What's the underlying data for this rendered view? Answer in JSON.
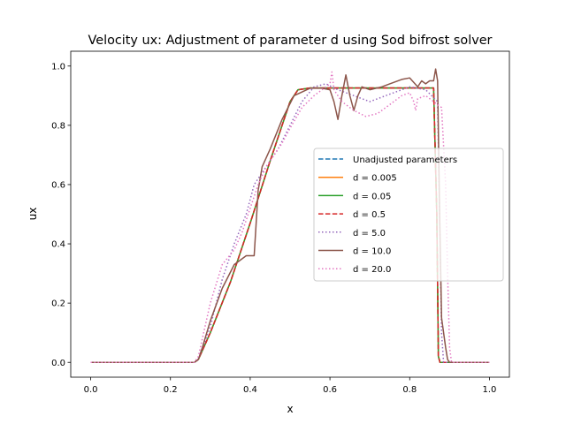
{
  "chart_data": {
    "type": "line",
    "title": "Velocity ux: Adjustment of parameter d using Sod bifrost solver",
    "xlabel": "x",
    "ylabel": "ux",
    "xlim": [
      -0.05,
      1.05
    ],
    "ylim": [
      -0.05,
      1.05
    ],
    "xticks": [
      0.0,
      0.2,
      0.4,
      0.6,
      0.8,
      1.0
    ],
    "xtick_labels": [
      "0.0",
      "0.2",
      "0.4",
      "0.6",
      "0.8",
      "1.0"
    ],
    "yticks": [
      0.0,
      0.2,
      0.4,
      0.6,
      0.8,
      1.0
    ],
    "ytick_labels": [
      "0.0",
      "0.2",
      "0.4",
      "0.6",
      "0.8",
      "1.0"
    ],
    "grid": false,
    "legend_position": "center-right",
    "series": [
      {
        "name": "Unadjusted parameters",
        "color": "#1f77b4",
        "dash": "dashed",
        "x": [
          0,
          0.26,
          0.27,
          0.3,
          0.35,
          0.4,
          0.45,
          0.5,
          0.52,
          0.55,
          0.7,
          0.86,
          0.868,
          0.872,
          0.876,
          1.0
        ],
        "y": [
          0,
          0,
          0.01,
          0.1,
          0.27,
          0.47,
          0.68,
          0.88,
          0.92,
          0.926,
          0.926,
          0.926,
          0.5,
          0.02,
          0,
          0
        ]
      },
      {
        "name": "d = 0.005",
        "color": "#ff7f0e",
        "dash": "solid",
        "x": [
          0,
          0.26,
          0.27,
          0.3,
          0.35,
          0.4,
          0.45,
          0.5,
          0.52,
          0.55,
          0.7,
          0.86,
          0.868,
          0.872,
          0.876,
          1.0
        ],
        "y": [
          0,
          0,
          0.01,
          0.1,
          0.27,
          0.47,
          0.68,
          0.88,
          0.92,
          0.926,
          0.926,
          0.926,
          0.5,
          0.02,
          0,
          0
        ]
      },
      {
        "name": "d = 0.05",
        "color": "#2ca02c",
        "dash": "solid",
        "x": [
          0,
          0.26,
          0.27,
          0.3,
          0.35,
          0.4,
          0.45,
          0.5,
          0.52,
          0.55,
          0.7,
          0.86,
          0.868,
          0.872,
          0.876,
          1.0
        ],
        "y": [
          0,
          0,
          0.01,
          0.1,
          0.27,
          0.47,
          0.68,
          0.88,
          0.92,
          0.926,
          0.926,
          0.926,
          0.5,
          0.02,
          0,
          0
        ]
      },
      {
        "name": "d = 0.5",
        "color": "#d62728",
        "dash": "dashed",
        "x": [
          0,
          0.26,
          0.27,
          0.3,
          0.35,
          0.4,
          0.45,
          0.5,
          0.52,
          0.55,
          0.7,
          0.86,
          0.868,
          0.872,
          0.876,
          1.0
        ],
        "y": [
          0,
          0,
          0.01,
          0.1,
          0.27,
          0.47,
          0.68,
          0.88,
          0.92,
          0.926,
          0.926,
          0.926,
          0.5,
          0.02,
          0,
          0
        ]
      },
      {
        "name": "d = 5.0",
        "color": "#9467bd",
        "dash": "dotted",
        "x": [
          0,
          0.26,
          0.27,
          0.3,
          0.33,
          0.36,
          0.39,
          0.41,
          0.43,
          0.45,
          0.47,
          0.5,
          0.53,
          0.56,
          0.59,
          0.62,
          0.66,
          0.7,
          0.74,
          0.78,
          0.8,
          0.84,
          0.87,
          0.875,
          0.88,
          0.885,
          1.0
        ],
        "y": [
          0,
          0,
          0.01,
          0.12,
          0.28,
          0.4,
          0.5,
          0.6,
          0.64,
          0.68,
          0.72,
          0.8,
          0.88,
          0.93,
          0.94,
          0.92,
          0.9,
          0.88,
          0.9,
          0.92,
          0.93,
          0.92,
          0.88,
          0.5,
          0.1,
          0,
          0
        ]
      },
      {
        "name": "d = 10.0",
        "color": "#8c564b",
        "dash": "solid",
        "x": [
          0,
          0.26,
          0.27,
          0.28,
          0.3,
          0.33,
          0.36,
          0.39,
          0.41,
          0.42,
          0.43,
          0.45,
          0.48,
          0.51,
          0.55,
          0.58,
          0.6,
          0.61,
          0.62,
          0.63,
          0.64,
          0.65,
          0.66,
          0.67,
          0.68,
          0.7,
          0.73,
          0.75,
          0.78,
          0.8,
          0.82,
          0.83,
          0.84,
          0.85,
          0.86,
          0.865,
          0.87,
          0.875,
          0.88,
          0.89,
          0.895,
          0.9,
          1.0
        ],
        "y": [
          0,
          0,
          0.01,
          0.05,
          0.14,
          0.25,
          0.33,
          0.36,
          0.36,
          0.58,
          0.66,
          0.72,
          0.82,
          0.9,
          0.925,
          0.925,
          0.92,
          0.88,
          0.82,
          0.9,
          0.97,
          0.9,
          0.85,
          0.9,
          0.93,
          0.92,
          0.93,
          0.94,
          0.955,
          0.96,
          0.93,
          0.95,
          0.94,
          0.95,
          0.95,
          0.99,
          0.95,
          0.5,
          0.15,
          0.05,
          0.01,
          0,
          0
        ]
      },
      {
        "name": "d = 20.0",
        "color": "#e377c2",
        "dash": "dotted",
        "x": [
          0,
          0.26,
          0.27,
          0.3,
          0.33,
          0.36,
          0.38,
          0.4,
          0.42,
          0.44,
          0.46,
          0.48,
          0.5,
          0.53,
          0.56,
          0.59,
          0.6,
          0.605,
          0.61,
          0.63,
          0.66,
          0.69,
          0.72,
          0.75,
          0.78,
          0.8,
          0.81,
          0.815,
          0.82,
          0.84,
          0.86,
          0.87,
          0.88,
          0.89,
          0.895,
          0.9,
          0.905,
          1.0
        ],
        "y": [
          0,
          0,
          0.02,
          0.2,
          0.33,
          0.38,
          0.44,
          0.52,
          0.6,
          0.66,
          0.7,
          0.74,
          0.79,
          0.86,
          0.9,
          0.93,
          0.94,
          0.98,
          0.92,
          0.88,
          0.85,
          0.83,
          0.84,
          0.87,
          0.9,
          0.91,
          0.88,
          0.85,
          0.89,
          0.9,
          0.88,
          0.87,
          0.86,
          0.6,
          0.3,
          0.05,
          0,
          0
        ]
      }
    ]
  }
}
